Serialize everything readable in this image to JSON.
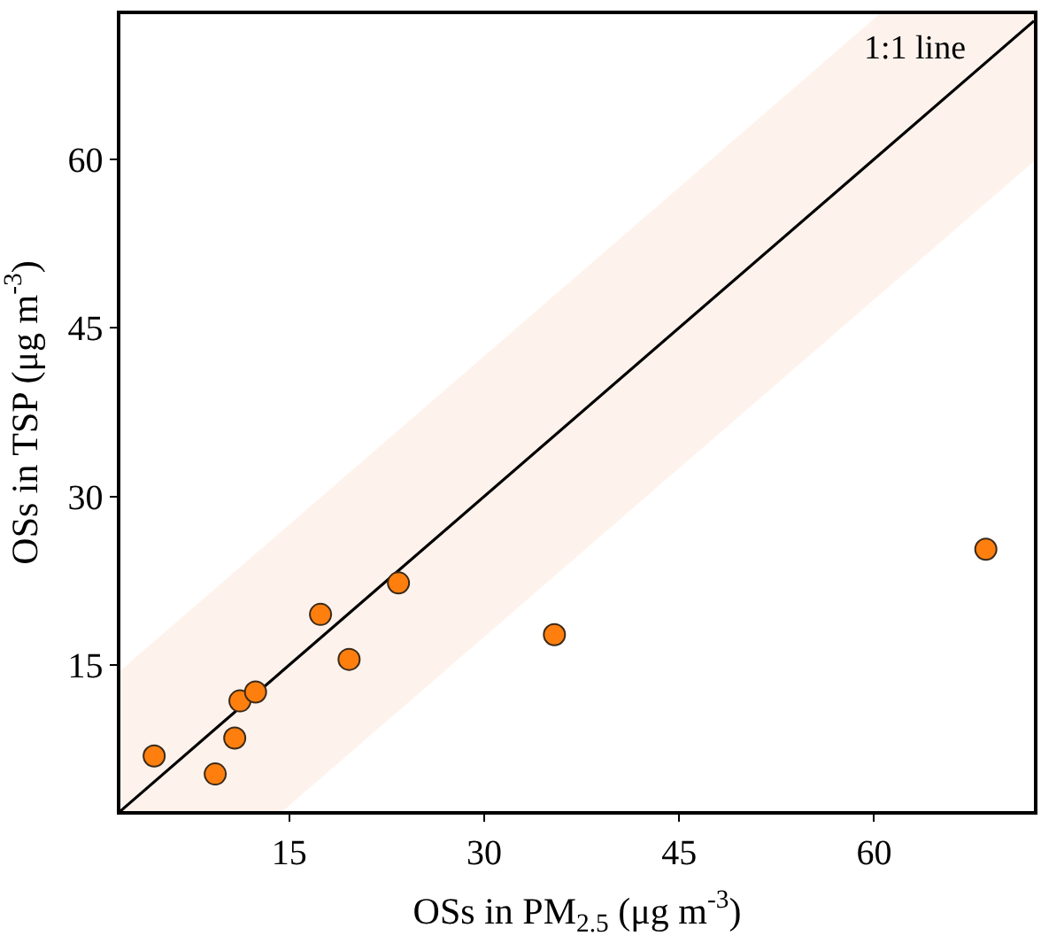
{
  "chart_data": {
    "type": "scatter",
    "xlabel": "OSs in PM$_{2.5}$ (μg m$^{-3}$)",
    "ylabel": "OSs in TSP (μg m$^{-3}$)",
    "xlim": [
      2,
      72.3
    ],
    "ylim": [
      2,
      72.9
    ],
    "xticks": [
      15,
      30,
      45,
      60
    ],
    "yticks": [
      15,
      30,
      45,
      60
    ],
    "marker": "circle",
    "series": [
      {
        "type": "line",
        "color": "#000000",
        "x": [
          2,
          14.5,
          60.4,
          72.3
        ],
        "values": [
          2,
          14.5,
          60.4,
          72.3
        ],
        "lower": [
          2,
          2,
          47.9,
          59.8
        ],
        "upper": [
          14.5,
          27,
          72.9,
          72.9
        ],
        "line_style": "solid",
        "marker": "none"
      },
      {
        "color": "#ff7f0e",
        "x": [
          4.6,
          9.3,
          10.8,
          11.2,
          12.4,
          17.4,
          19.6,
          23.4,
          35.4,
          68.6
        ],
        "values": [
          6.9,
          5.3,
          8.5,
          11.8,
          12.6,
          19.5,
          15.5,
          22.3,
          17.7,
          25.3
        ]
      }
    ],
    "annotations": [
      "1:1 line"
    ]
  }
}
